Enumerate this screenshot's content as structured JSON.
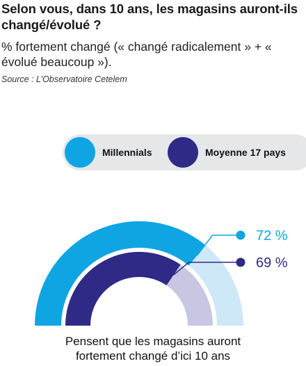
{
  "title": "Selon vous, dans 10 ans, les magasins auront-ils changé/évolué ?",
  "subtitle": "% fortement changé (« changé radicalement » + « évolué beaucoup »).",
  "source": "Source : L’Observatoire Cetelem",
  "legend": [
    {
      "label": "Millennials",
      "color": "#0ea5e2"
    },
    {
      "label": "Moyenne 17 pays",
      "color": "#2e2a85"
    }
  ],
  "chart_data": {
    "type": "pie",
    "variant": "semicircular gauge",
    "unit": "%",
    "max": 100,
    "series": [
      {
        "name": "Millennials",
        "value": 72,
        "label": "72 %",
        "color": "#0ea5e2",
        "track_color": "#cfe8f8"
      },
      {
        "name": "Moyenne 17 pays",
        "value": 69,
        "label": "69 %",
        "color": "#2e2a85",
        "track_color": "#c9c6e4"
      }
    ]
  },
  "caption": {
    "line1": "Pensent que les magasins auront",
    "line2": "fortement changé d’ici 10 ans"
  }
}
